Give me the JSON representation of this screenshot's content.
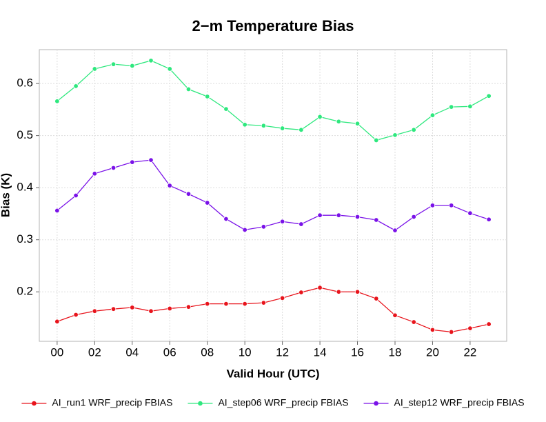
{
  "chart_data": {
    "type": "line",
    "title": "2−m Temperature Bias",
    "x_label": "Valid Hour (UTC)",
    "y_label": "Bias (K)",
    "x": [
      0,
      1,
      2,
      3,
      4,
      5,
      6,
      7,
      8,
      9,
      10,
      11,
      12,
      13,
      14,
      15,
      16,
      17,
      18,
      19,
      20,
      21,
      22,
      23
    ],
    "series": [
      {
        "name": "AI_run1 WRF_precip FBIAS",
        "color": "#e8141c",
        "values": [
          0.143,
          0.156,
          0.163,
          0.167,
          0.17,
          0.163,
          0.168,
          0.171,
          0.177,
          0.177,
          0.177,
          0.179,
          0.188,
          0.199,
          0.208,
          0.2,
          0.2,
          0.187,
          0.155,
          0.142,
          0.127,
          0.123,
          0.13,
          0.138
        ]
      },
      {
        "name": "AI_step06 WRF_precip FBIAS",
        "color": "#2ee87e",
        "values": [
          0.566,
          0.595,
          0.628,
          0.637,
          0.634,
          0.644,
          0.628,
          0.589,
          0.575,
          0.551,
          0.521,
          0.519,
          0.514,
          0.511,
          0.536,
          0.527,
          0.523,
          0.491,
          0.501,
          0.511,
          0.539,
          0.555,
          0.556,
          0.576
        ]
      },
      {
        "name": "AI_step12 WRF_precip FBIAS",
        "color": "#7a12e8",
        "values": [
          0.356,
          0.385,
          0.427,
          0.438,
          0.449,
          0.453,
          0.404,
          0.388,
          0.371,
          0.34,
          0.319,
          0.325,
          0.335,
          0.33,
          0.347,
          0.347,
          0.344,
          0.338,
          0.318,
          0.344,
          0.366,
          0.366,
          0.351,
          0.339
        ]
      }
    ],
    "xlim": [
      -0.95,
      23.95
    ],
    "xticks": [
      {
        "value": 0,
        "label": "00"
      },
      {
        "value": 2,
        "label": "02"
      },
      {
        "value": 4,
        "label": "04"
      },
      {
        "value": 6,
        "label": "06"
      },
      {
        "value": 8,
        "label": "08"
      },
      {
        "value": 10,
        "label": "10"
      },
      {
        "value": 12,
        "label": "12"
      },
      {
        "value": 14,
        "label": "14"
      },
      {
        "value": 16,
        "label": "16"
      },
      {
        "value": 18,
        "label": "18"
      },
      {
        "value": 20,
        "label": "20"
      },
      {
        "value": 22,
        "label": "22"
      }
    ],
    "ylim": [
      0.105,
      0.665
    ],
    "yticks": [
      0.2,
      0.3,
      0.4,
      0.5,
      0.6
    ],
    "grid": true,
    "legend": "bottom"
  }
}
